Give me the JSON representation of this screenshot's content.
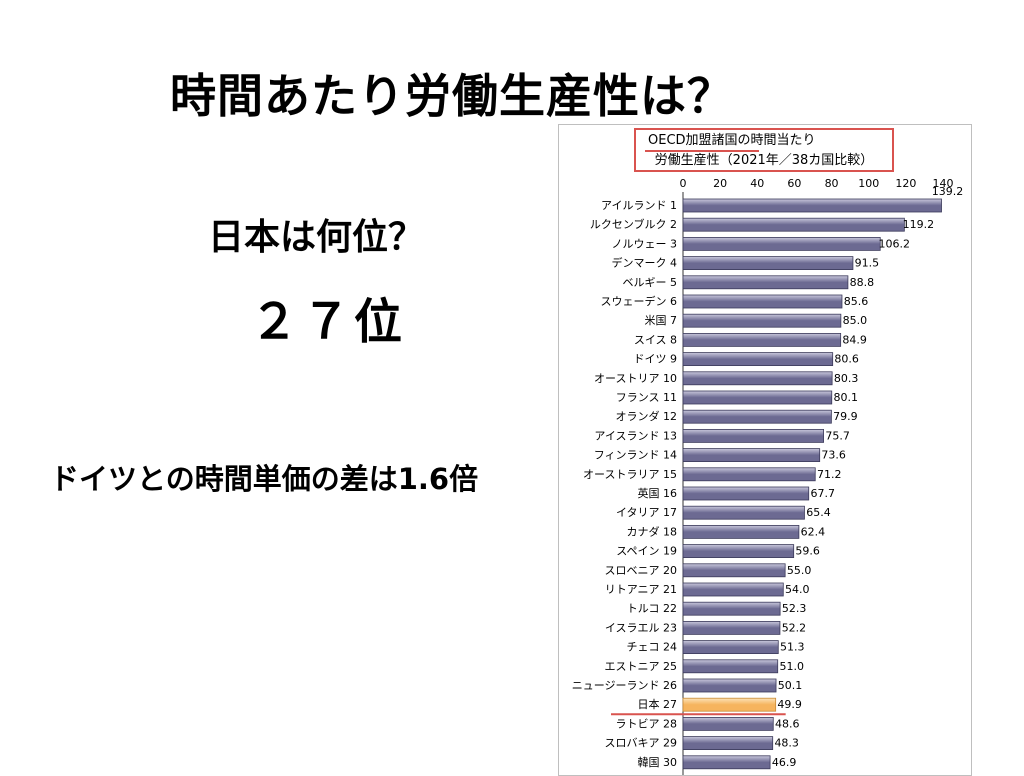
{
  "slide": {
    "title": "時間あたり労働生産性は？",
    "question": "日本は何位？",
    "answer": "２７位",
    "note": "ドイツとの時間単価の差は1.6倍"
  },
  "chart_data": {
    "type": "bar",
    "orientation": "horizontal",
    "title_line1": "OECD加盟諸国の時間当たり",
    "title_line2": "労働生産性（2021年／38カ国比較）",
    "xlim": [
      0,
      140
    ],
    "xticks": [
      "0",
      "20",
      "40",
      "60",
      "80",
      "100",
      "120",
      "140"
    ],
    "categories": [
      "アイルランド 1",
      "ルクセンブルク 2",
      "ノルウェー 3",
      "デンマーク 4",
      "ベルギー 5",
      "スウェーデン 6",
      "米国 7",
      "スイス 8",
      "ドイツ 9",
      "オーストリア 10",
      "フランス 11",
      "オランダ 12",
      "アイスランド 13",
      "フィンランド 14",
      "オーストラリア 15",
      "英国 16",
      "イタリア 17",
      "カナダ 18",
      "スペイン 19",
      "スロベニア 20",
      "リトアニア 21",
      "トルコ 22",
      "イスラエル 23",
      "チェコ 24",
      "エストニア 25",
      "ニュージーランド 26",
      "日本 27",
      "ラトビア 28",
      "スロバキア 29",
      "韓国 30"
    ],
    "values": [
      139.2,
      119.2,
      106.2,
      91.5,
      88.8,
      85.6,
      85.0,
      84.9,
      80.6,
      80.3,
      80.1,
      79.9,
      75.7,
      73.6,
      71.2,
      67.7,
      65.4,
      62.4,
      59.6,
      55.0,
      54.0,
      52.3,
      52.2,
      51.3,
      51.0,
      50.1,
      49.9,
      48.6,
      48.3,
      46.9
    ],
    "value_labels": [
      "139.2",
      "119.2",
      "106.2",
      "91.5",
      "88.8",
      "85.6",
      "85.0",
      "84.9",
      "80.6",
      "80.3",
      "80.1",
      "79.9",
      "75.7",
      "73.6",
      "71.2",
      "67.7",
      "65.4",
      "62.4",
      "59.6",
      "55.0",
      "54.0",
      "52.3",
      "52.2",
      "51.3",
      "51.0",
      "50.1",
      "49.9",
      "48.6",
      "48.3",
      "46.9"
    ],
    "highlight_category": "日本 27",
    "colors": {
      "bar": "#6c6a92",
      "bar_light": "#c9c8dc",
      "highlight": "#f6b45e",
      "highlight_light": "#fde3b8",
      "title_border": "#d9534f"
    }
  }
}
